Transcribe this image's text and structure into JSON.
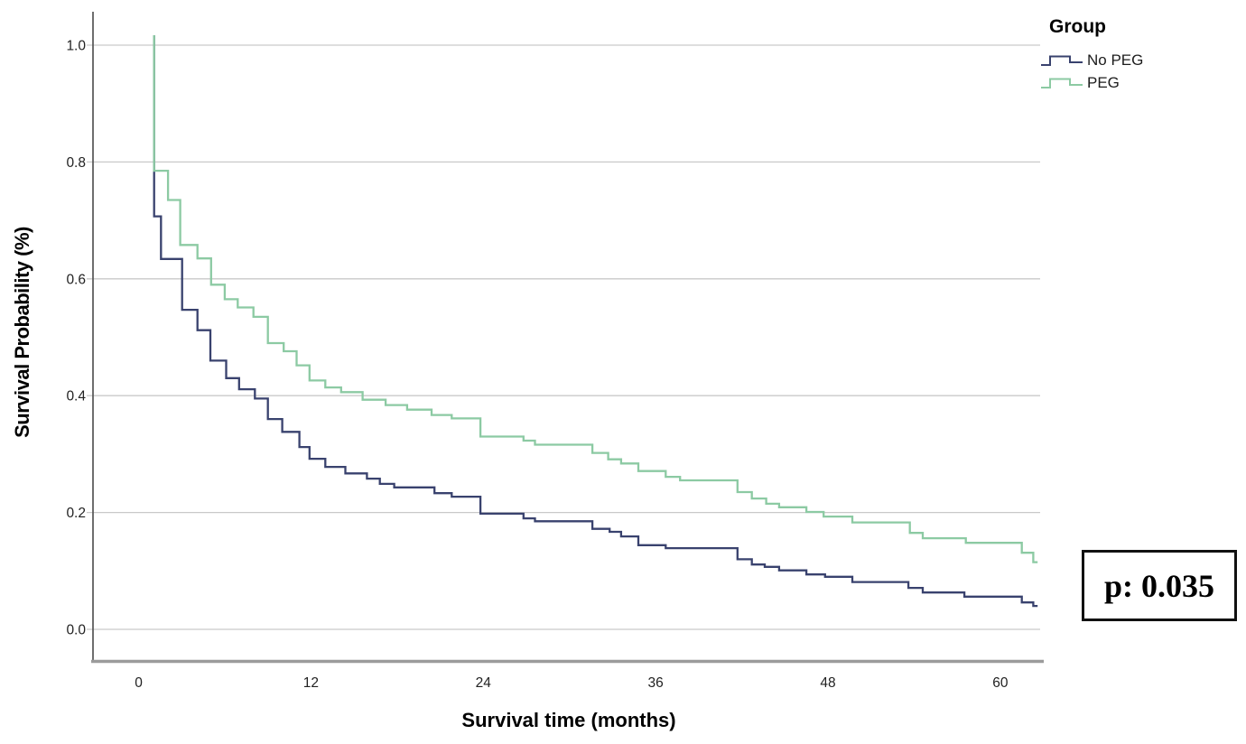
{
  "legend": {
    "title": "Group",
    "items": [
      {
        "label": "No PEG",
        "color": "#39426e"
      },
      {
        "label": "PEG",
        "color": "#8ccaa3"
      }
    ]
  },
  "annotation": {
    "p_label": "p: 0.035"
  },
  "chart_data": {
    "type": "line",
    "subtype": "kaplan-meier-step",
    "title": "",
    "xlabel": "Survival time (months)",
    "ylabel": "Survival Probability (%)",
    "xticks": [
      0,
      12,
      24,
      36,
      48,
      60
    ],
    "yticks": [
      0.0,
      0.2,
      0.4,
      0.6,
      0.8,
      1.0
    ],
    "xlim": [
      -3.2,
      62.8
    ],
    "ylim": [
      0,
      1.0
    ],
    "grid": "horizontal",
    "legend_position": "top-right",
    "p_value_text": "p: 0.035",
    "end_t": 62.6,
    "colors": {
      "grid": "#c9c9c9",
      "y_axis": "#555555",
      "x_axis": "#9b9b9b",
      "tick_text": "#222222"
    },
    "series": [
      {
        "name": "No PEG",
        "color": "#39426e",
        "start": [
          1.08,
          1.0
        ],
        "steps": [
          [
            1.08,
            0.707
          ],
          [
            1.56,
            0.634
          ],
          [
            3.03,
            0.547
          ],
          [
            4.1,
            0.512
          ],
          [
            5.0,
            0.46
          ],
          [
            6.1,
            0.43
          ],
          [
            7.0,
            0.411
          ],
          [
            8.1,
            0.395
          ],
          [
            9.0,
            0.36
          ],
          [
            10.0,
            0.338
          ],
          [
            11.2,
            0.312
          ],
          [
            11.9,
            0.292
          ],
          [
            13.0,
            0.278
          ],
          [
            14.4,
            0.267
          ],
          [
            15.9,
            0.258
          ],
          [
            16.8,
            0.249
          ],
          [
            17.8,
            0.243
          ],
          [
            20.6,
            0.233
          ],
          [
            21.8,
            0.227
          ],
          [
            23.8,
            0.198
          ],
          [
            26.8,
            0.19
          ],
          [
            27.6,
            0.185
          ],
          [
            31.6,
            0.172
          ],
          [
            32.8,
            0.167
          ],
          [
            33.6,
            0.159
          ],
          [
            34.8,
            0.144
          ],
          [
            36.7,
            0.139
          ],
          [
            41.7,
            0.12
          ],
          [
            42.7,
            0.111
          ],
          [
            43.6,
            0.107
          ],
          [
            44.6,
            0.101
          ],
          [
            46.5,
            0.094
          ],
          [
            47.8,
            0.09
          ],
          [
            49.7,
            0.081
          ],
          [
            53.6,
            0.071
          ],
          [
            54.6,
            0.063
          ],
          [
            57.5,
            0.056
          ],
          [
            61.5,
            0.046
          ],
          [
            62.3,
            0.04
          ]
        ]
      },
      {
        "name": "PEG",
        "color": "#8ccaa3",
        "start": [
          1.08,
          1.0
        ],
        "steps": [
          [
            1.08,
            0.785
          ],
          [
            2.05,
            0.735
          ],
          [
            2.9,
            0.658
          ],
          [
            4.1,
            0.635
          ],
          [
            5.05,
            0.59
          ],
          [
            6.0,
            0.565
          ],
          [
            6.9,
            0.551
          ],
          [
            8.0,
            0.535
          ],
          [
            9.0,
            0.49
          ],
          [
            10.1,
            0.476
          ],
          [
            11.0,
            0.452
          ],
          [
            11.9,
            0.426
          ],
          [
            13.0,
            0.414
          ],
          [
            14.1,
            0.406
          ],
          [
            15.6,
            0.393
          ],
          [
            17.2,
            0.384
          ],
          [
            18.7,
            0.376
          ],
          [
            20.4,
            0.367
          ],
          [
            21.8,
            0.361
          ],
          [
            23.8,
            0.33
          ],
          [
            26.8,
            0.323
          ],
          [
            27.6,
            0.316
          ],
          [
            31.6,
            0.302
          ],
          [
            32.7,
            0.291
          ],
          [
            33.6,
            0.284
          ],
          [
            34.8,
            0.271
          ],
          [
            36.7,
            0.261
          ],
          [
            37.7,
            0.255
          ],
          [
            41.7,
            0.235
          ],
          [
            42.7,
            0.224
          ],
          [
            43.7,
            0.215
          ],
          [
            44.6,
            0.209
          ],
          [
            46.5,
            0.201
          ],
          [
            47.7,
            0.193
          ],
          [
            49.7,
            0.183
          ],
          [
            53.7,
            0.165
          ],
          [
            54.6,
            0.156
          ],
          [
            57.6,
            0.148
          ],
          [
            61.5,
            0.131
          ],
          [
            62.3,
            0.115
          ]
        ]
      }
    ]
  }
}
